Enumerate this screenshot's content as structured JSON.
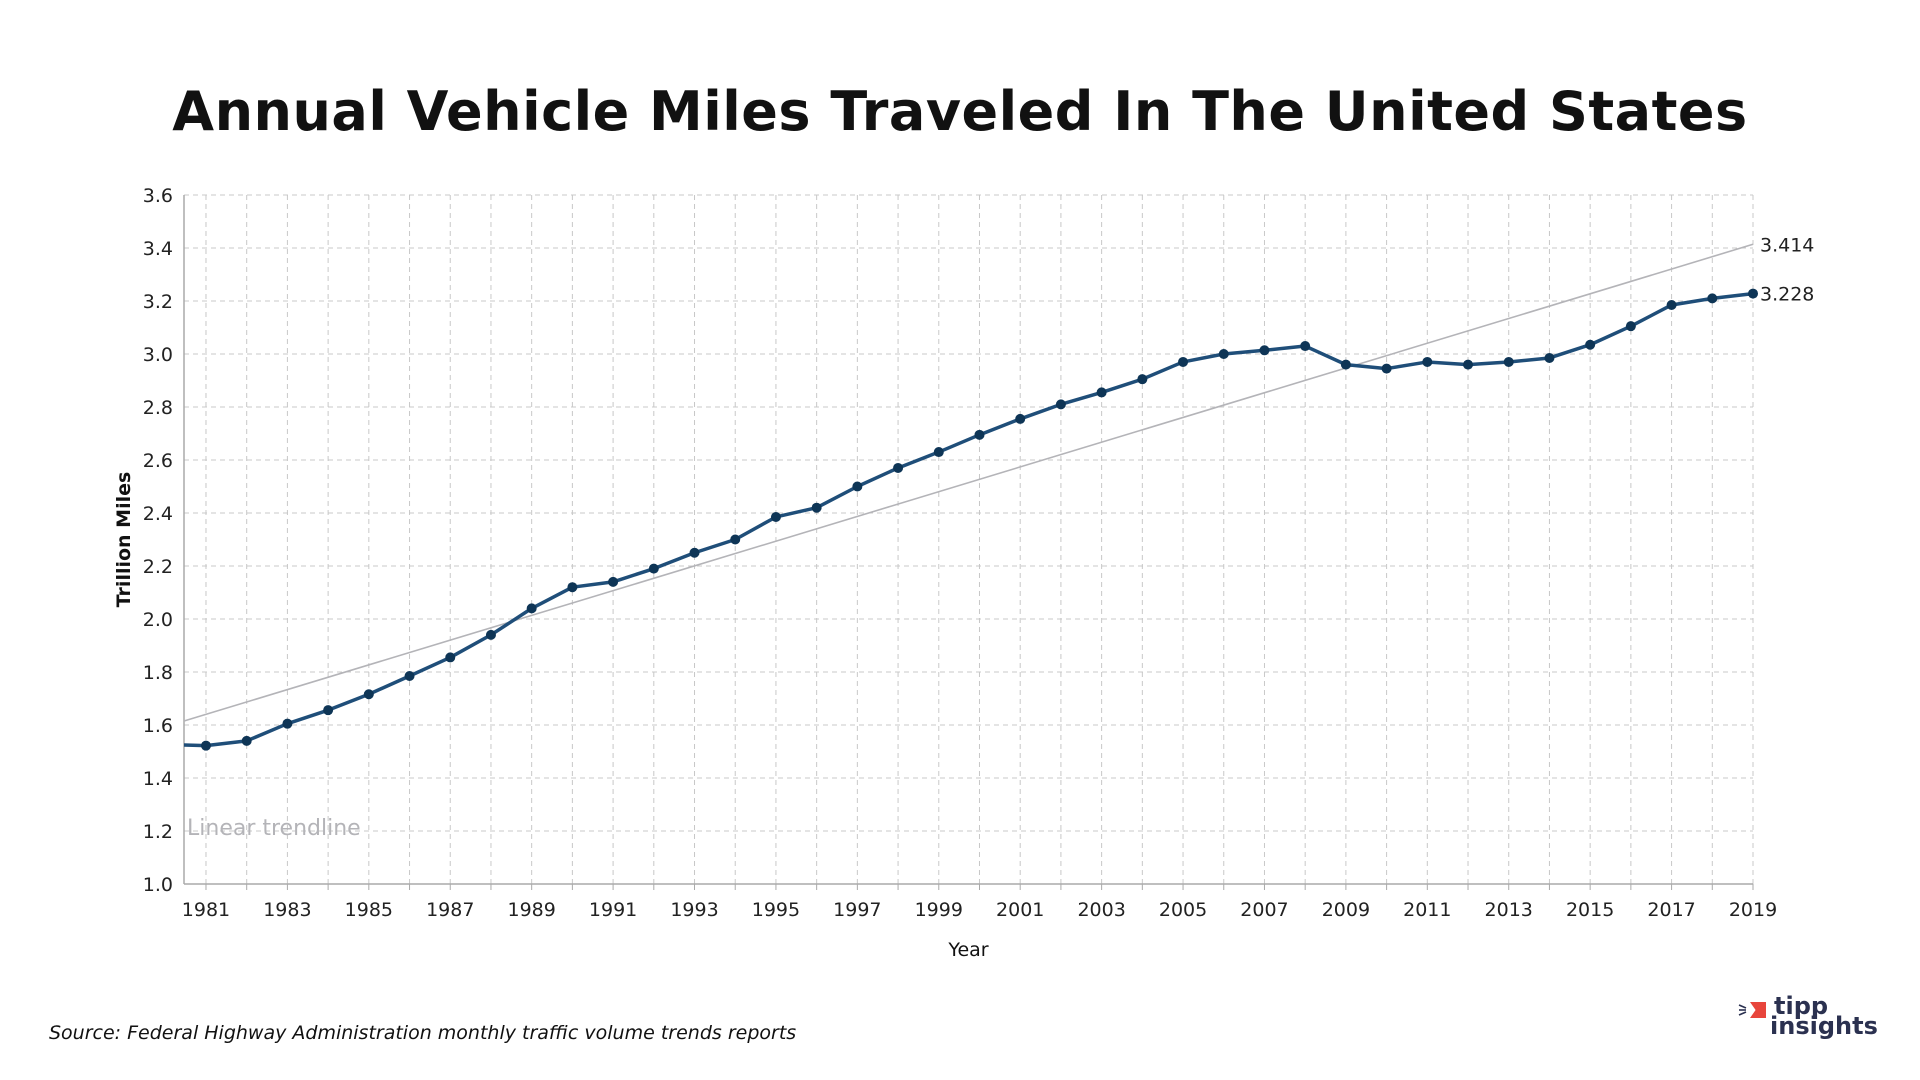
{
  "chart_data": {
    "type": "line",
    "title": "Annual Vehicle Miles Traveled In The United States",
    "xlabel": "Year",
    "ylabel": "Trillion Miles",
    "xlim": [
      1980.46,
      2019
    ],
    "ylim": [
      1.0,
      3.6
    ],
    "yticks": [
      "1.0",
      "1.2",
      "1.4",
      "1.6",
      "1.8",
      "2.0",
      "2.2",
      "2.4",
      "2.6",
      "2.8",
      "3.0",
      "3.2",
      "3.4",
      "3.6"
    ],
    "xticks": [
      "1981",
      "1983",
      "1985",
      "1987",
      "1989",
      "1991",
      "1993",
      "1995",
      "1997",
      "1999",
      "2001",
      "2003",
      "2005",
      "2007",
      "2009",
      "2011",
      "2013",
      "2015",
      "2017",
      "2019"
    ],
    "grid": true,
    "series": [
      {
        "color": "#1f4e79",
        "x": [
          1980,
          1981,
          1982,
          1983,
          1984,
          1985,
          1986,
          1987,
          1988,
          1989,
          1990,
          1991,
          1992,
          1993,
          1994,
          1995,
          1996,
          1997,
          1998,
          1999,
          2000,
          2001,
          2002,
          2003,
          2004,
          2005,
          2006,
          2007,
          2008,
          2009,
          2010,
          2011,
          2012,
          2013,
          2014,
          2015,
          2016,
          2017,
          2018,
          2019
        ],
        "values": [
          1.527,
          1.522,
          1.54,
          1.605,
          1.656,
          1.716,
          1.785,
          1.855,
          1.94,
          2.04,
          2.12,
          2.14,
          2.19,
          2.25,
          2.3,
          2.385,
          2.42,
          2.5,
          2.57,
          2.63,
          2.695,
          2.755,
          2.81,
          2.855,
          2.905,
          2.97,
          3.0,
          3.014,
          3.03,
          2.96,
          2.945,
          2.97,
          2.96,
          2.97,
          2.985,
          3.035,
          3.105,
          3.185,
          3.21,
          3.228
        ]
      }
    ],
    "trendline": {
      "label": "Linear trendline",
      "color": "#b4b4b8",
      "x": [
        1980.46,
        2019
      ],
      "values": [
        1.615,
        3.414
      ]
    },
    "end_labels": {
      "trend": "3.414",
      "series": "3.228"
    }
  },
  "source": "Source:  Federal Highway Administration monthly traffic volume trends reports",
  "logo": {
    "line1": "tipp",
    "line2": "insights",
    "accent": "#e8453c",
    "text_color": "#2b3150"
  }
}
